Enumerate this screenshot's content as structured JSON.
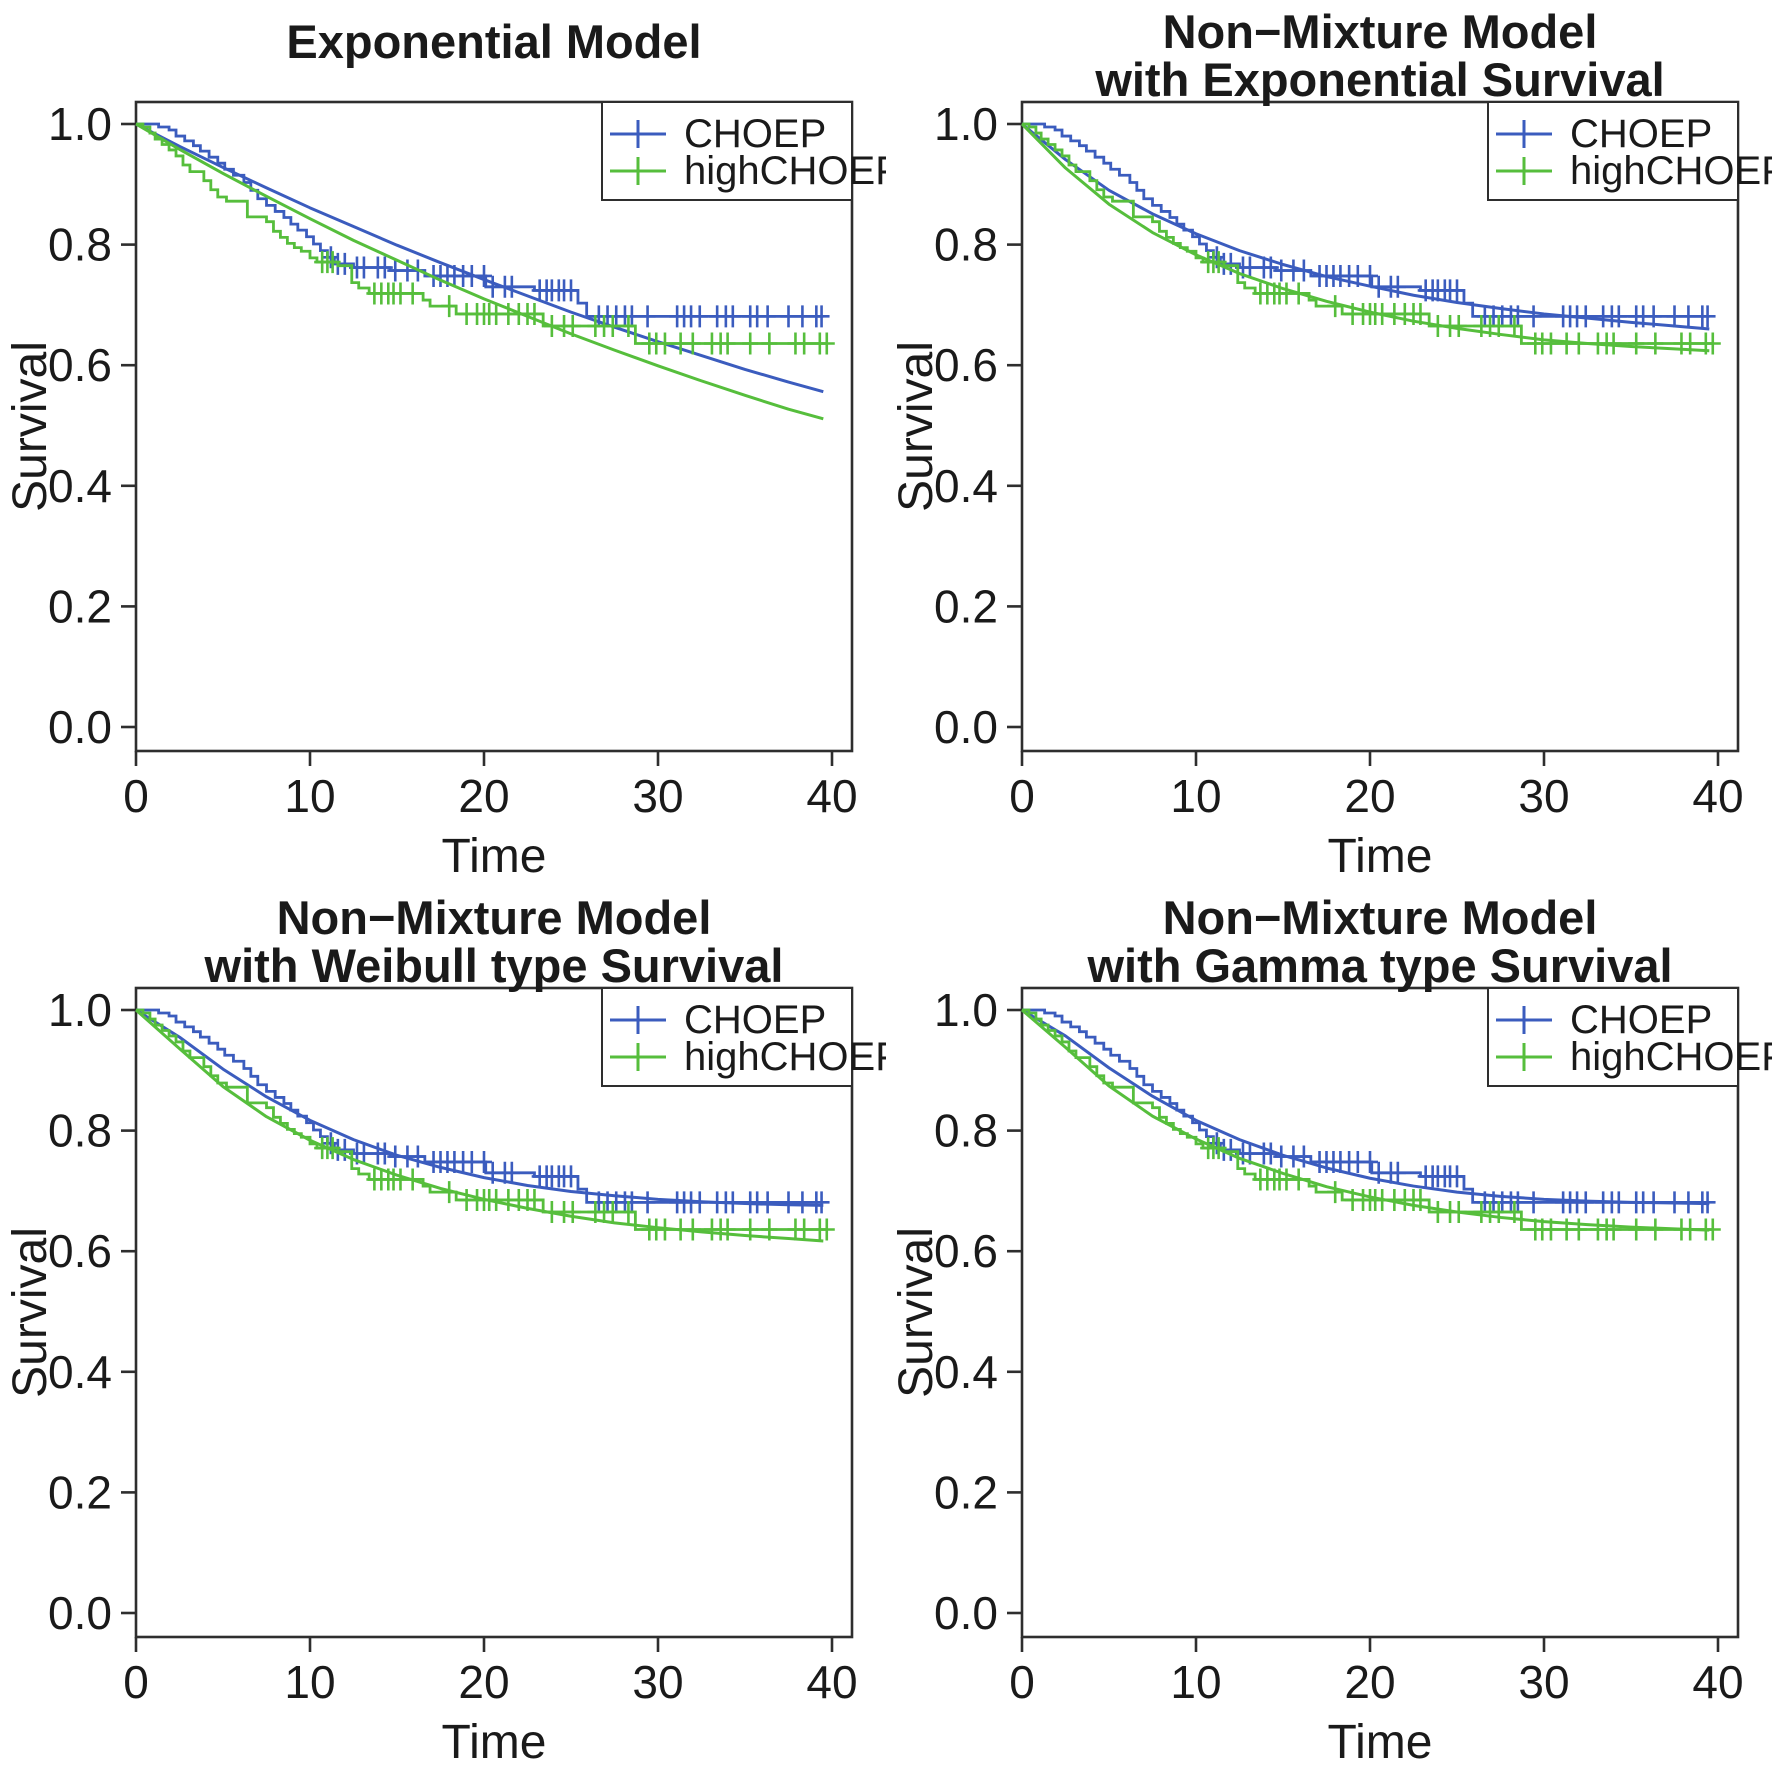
{
  "figure": {
    "background": "#ffffff",
    "text_color": "#1a1a1a",
    "axis_color": "#2e2e2e"
  },
  "chart_data": {
    "type": "line",
    "layout": "2x2-grid-of-survival-plots",
    "xlabel": "Time",
    "ylabel": "Survival",
    "xlim": [
      0,
      40
    ],
    "ylim": [
      0.0,
      1.0
    ],
    "xtick_values": [
      0,
      10,
      20,
      30,
      40
    ],
    "xtick_labels": [
      "0",
      "10",
      "20",
      "30",
      "40"
    ],
    "ytick_values": [
      0.0,
      0.2,
      0.4,
      0.6,
      0.8,
      1.0
    ],
    "ytick_labels": [
      "0.0",
      "0.2",
      "0.4",
      "0.6",
      "0.8",
      "1.0"
    ],
    "grid": false,
    "legend": {
      "position": "top-right",
      "entries": [
        {
          "label": "CHOEP",
          "color": "#3b5cbe"
        },
        {
          "label": "highCHOEP",
          "color": "#56be3c"
        }
      ]
    },
    "kaplan_meier": {
      "CHOEP": {
        "color": "#3b5cbe",
        "steps": [
          [
            0,
            1.0
          ],
          [
            1.3,
            0.995
          ],
          [
            1.9,
            0.99
          ],
          [
            2.3,
            0.98
          ],
          [
            2.8,
            0.972
          ],
          [
            3.3,
            0.964
          ],
          [
            3.7,
            0.955
          ],
          [
            4.2,
            0.945
          ],
          [
            4.7,
            0.935
          ],
          [
            5.1,
            0.925
          ],
          [
            5.6,
            0.915
          ],
          [
            6.2,
            0.903
          ],
          [
            6.6,
            0.89
          ],
          [
            7.0,
            0.876
          ],
          [
            7.5,
            0.865
          ],
          [
            8.0,
            0.855
          ],
          [
            8.5,
            0.845
          ],
          [
            8.9,
            0.834
          ],
          [
            9.3,
            0.824
          ],
          [
            9.8,
            0.813
          ],
          [
            10.2,
            0.801
          ],
          [
            10.6,
            0.79
          ],
          [
            11.0,
            0.779
          ],
          [
            11.4,
            0.768
          ],
          [
            12.5,
            0.762
          ],
          [
            14.6,
            0.757
          ],
          [
            16.6,
            0.748
          ],
          [
            20.1,
            0.73
          ],
          [
            22.9,
            0.724
          ],
          [
            25.4,
            0.703
          ],
          [
            25.9,
            0.681
          ],
          [
            39.5,
            0.681
          ]
        ],
        "censor_times": [
          11.2,
          11.6,
          12.0,
          12.7,
          13.1,
          13.9,
          14.3,
          14.9,
          15.6,
          16.2,
          17.1,
          17.5,
          17.9,
          18.3,
          18.8,
          19.3,
          20.0,
          20.5,
          21.2,
          21.6,
          23.2,
          23.6,
          23.9,
          24.3,
          24.6,
          25.0,
          26.6,
          27.1,
          27.6,
          28.1,
          28.5,
          29.4,
          31.1,
          31.5,
          31.9,
          32.4,
          33.4,
          33.9,
          34.3,
          35.3,
          35.7,
          36.3,
          37.5,
          38.3,
          39.1,
          39.4
        ]
      },
      "highCHOEP": {
        "color": "#56be3c",
        "steps": [
          [
            0,
            1.0
          ],
          [
            0.4,
            0.995
          ],
          [
            0.8,
            0.985
          ],
          [
            1.1,
            0.975
          ],
          [
            1.5,
            0.966
          ],
          [
            1.9,
            0.957
          ],
          [
            2.3,
            0.947
          ],
          [
            2.7,
            0.932
          ],
          [
            3.1,
            0.921
          ],
          [
            3.9,
            0.906
          ],
          [
            4.3,
            0.891
          ],
          [
            4.7,
            0.879
          ],
          [
            5.2,
            0.872
          ],
          [
            6.4,
            0.846
          ],
          [
            7.5,
            0.838
          ],
          [
            7.9,
            0.822
          ],
          [
            8.3,
            0.812
          ],
          [
            8.7,
            0.802
          ],
          [
            9.1,
            0.795
          ],
          [
            9.5,
            0.789
          ],
          [
            10.0,
            0.778
          ],
          [
            10.4,
            0.771
          ],
          [
            11.6,
            0.765
          ],
          [
            12.4,
            0.737
          ],
          [
            12.8,
            0.728
          ],
          [
            13.4,
            0.719
          ],
          [
            16.5,
            0.708
          ],
          [
            16.9,
            0.698
          ],
          [
            18.4,
            0.685
          ],
          [
            23.4,
            0.665
          ],
          [
            28.7,
            0.636
          ],
          [
            39.7,
            0.636
          ]
        ],
        "censor_times": [
          10.7,
          11.0,
          11.3,
          13.7,
          14.1,
          14.5,
          14.8,
          15.2,
          15.9,
          18.0,
          19.0,
          19.6,
          20.0,
          20.3,
          20.7,
          21.4,
          22.0,
          22.5,
          22.9,
          23.9,
          24.6,
          25.1,
          26.4,
          26.9,
          27.4,
          28.3,
          29.5,
          29.9,
          30.4,
          31.3,
          32.0,
          33.1,
          33.6,
          34.0,
          35.3,
          36.4,
          37.9,
          38.4,
          39.3,
          39.7
        ]
      }
    },
    "fitted_t": [
      0,
      2.5,
      5,
      7.5,
      10,
      12.5,
      15,
      17.5,
      20,
      22.5,
      25,
      27.5,
      30,
      32.5,
      35,
      37.5,
      39.5
    ],
    "panels": [
      {
        "id": "exponential-model",
        "title_lines": [
          "Exponential Model"
        ],
        "fitted": {
          "CHOEP": [
            1,
            0.963,
            0.928,
            0.894,
            0.861,
            0.83,
            0.799,
            0.77,
            0.742,
            0.715,
            0.688,
            0.663,
            0.639,
            0.616,
            0.593,
            0.572,
            0.556
          ],
          "highCHOEP": [
            1,
            0.958,
            0.918,
            0.88,
            0.843,
            0.807,
            0.774,
            0.741,
            0.71,
            0.681,
            0.652,
            0.625,
            0.599,
            0.574,
            0.55,
            0.527,
            0.511
          ]
        }
      },
      {
        "id": "non-mixture-exponential",
        "title_lines": [
          "Non−Mixture Model",
          "with Exponential Survival"
        ],
        "fitted": {
          "CHOEP": [
            1,
            0.941,
            0.89,
            0.851,
            0.818,
            0.79,
            0.767,
            0.747,
            0.731,
            0.716,
            0.704,
            0.694,
            0.685,
            0.678,
            0.671,
            0.665,
            0.66
          ],
          "highCHOEP": [
            1,
            0.927,
            0.867,
            0.82,
            0.783,
            0.752,
            0.727,
            0.706,
            0.688,
            0.673,
            0.661,
            0.651,
            0.642,
            0.636,
            0.631,
            0.627,
            0.624
          ]
        }
      },
      {
        "id": "non-mixture-weibull",
        "title_lines": [
          "Non−Mixture Model",
          "with Weibull type Survival"
        ],
        "fitted": {
          "CHOEP": [
            1,
            0.955,
            0.902,
            0.856,
            0.817,
            0.785,
            0.759,
            0.739,
            0.722,
            0.709,
            0.699,
            0.692,
            0.686,
            0.682,
            0.679,
            0.677,
            0.676
          ],
          "highCHOEP": [
            1,
            0.936,
            0.873,
            0.823,
            0.784,
            0.752,
            0.726,
            0.704,
            0.686,
            0.671,
            0.658,
            0.647,
            0.639,
            0.632,
            0.626,
            0.621,
            0.617
          ]
        }
      },
      {
        "id": "non-mixture-gamma",
        "title_lines": [
          "Non−Mixture Model",
          "with Gamma type Survival"
        ],
        "fitted": {
          "CHOEP": [
            1,
            0.957,
            0.904,
            0.857,
            0.817,
            0.785,
            0.759,
            0.738,
            0.721,
            0.708,
            0.698,
            0.691,
            0.686,
            0.683,
            0.681,
            0.68,
            0.679
          ],
          "highCHOEP": [
            1,
            0.938,
            0.874,
            0.824,
            0.786,
            0.754,
            0.729,
            0.707,
            0.69,
            0.676,
            0.665,
            0.656,
            0.649,
            0.644,
            0.64,
            0.637,
            0.635
          ]
        }
      }
    ]
  }
}
